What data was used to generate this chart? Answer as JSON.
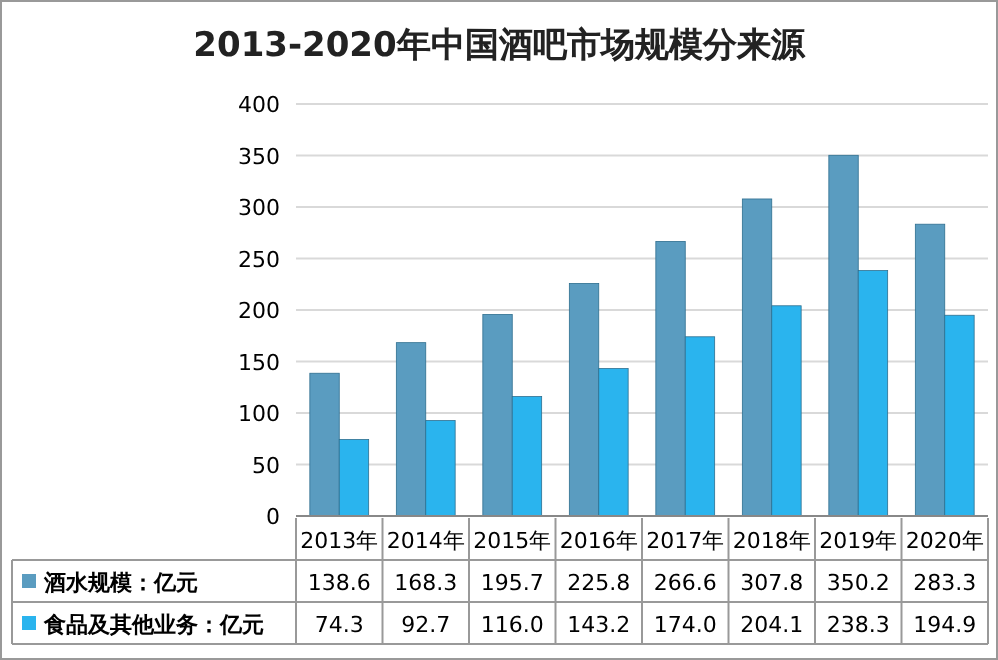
{
  "chart_data": {
    "type": "bar",
    "title": "2013-2020年中国酒吧市场规模分来源",
    "categories": [
      "2013年",
      "2014年",
      "2015年",
      "2016年",
      "2017年",
      "2018年",
      "2019年",
      "2020年"
    ],
    "series": [
      {
        "name": "酒水规模：亿元",
        "color": "#5a9cc0",
        "values": [
          138.6,
          168.3,
          195.7,
          225.8,
          266.6,
          307.8,
          350.2,
          283.3
        ]
      },
      {
        "name": "食品及其他业务：亿元",
        "color": "#2ab4ee",
        "values": [
          74.3,
          92.7,
          116.0,
          143.2,
          174.0,
          204.1,
          238.3,
          194.9
        ],
        "value_labels": [
          "74.3",
          "92.7",
          "116.0",
          "143.2",
          "174.0",
          "204.1",
          "238.3",
          "194.9"
        ]
      }
    ],
    "ylim": [
      0,
      400
    ],
    "yticks": [
      0,
      50,
      100,
      150,
      200,
      250,
      300,
      350,
      400
    ],
    "grid": "y",
    "legend": "bottom",
    "data_labels": true
  }
}
